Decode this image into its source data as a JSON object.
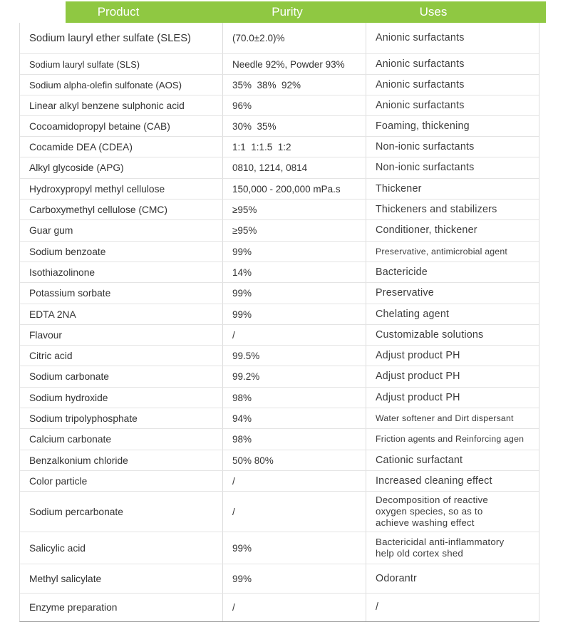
{
  "header": {
    "product_label": "Product",
    "purity_label": "Purity",
    "uses_label": "Uses",
    "bg_color": "#8fc842",
    "text_color": "#ffffff"
  },
  "table": {
    "rows": [
      {
        "product": "Sodium lauryl ether sulfate (SLES)",
        "purity": "(70.0±2.0)%",
        "uses": "Anionic surfactants"
      },
      {
        "product": "Sodium lauryl sulfate (SLS)",
        "purity": "Needle 92%, Powder 93%",
        "uses": "Anionic surfactants"
      },
      {
        "product": "Sodium alpha-olefin sulfonate (AOS)",
        "purity": "35%  38%  92%",
        "uses": "Anionic surfactants"
      },
      {
        "product": "Linear alkyl benzene sulphonic acid",
        "purity": "96%",
        "uses": "Anionic surfactants"
      },
      {
        "product": "Cocoamidopropyl betaine (CAB)",
        "purity": "30%  35%",
        "uses": "Foaming, thickening"
      },
      {
        "product": "Cocamide DEA (CDEA)",
        "purity": "1:1  1:1.5  1:2",
        "uses": "Non-ionic surfactants"
      },
      {
        "product": "Alkyl glycoside (APG)",
        "purity": "0810, 1214, 0814",
        "uses": "Non-ionic surfactants"
      },
      {
        "product": "Hydroxypropyl methyl cellulose",
        "purity": "150,000 - 200,000 mPa.s",
        "uses": "Thickener"
      },
      {
        "product": "Carboxymethyl cellulose (CMC)",
        "purity": "≥95%",
        "uses": "Thickeners and stabilizers"
      },
      {
        "product": "Guar gum",
        "purity": "≥95%",
        "uses": "Conditioner, thickener"
      },
      {
        "product": "Sodium benzoate",
        "purity": "99%",
        "uses": "Preservative, antimicrobial agent"
      },
      {
        "product": "Isothiazolinone",
        "purity": "14%",
        "uses": "Bactericide"
      },
      {
        "product": "Potassium sorbate",
        "purity": "99%",
        "uses": "Preservative"
      },
      {
        "product": "EDTA 2NA",
        "purity": "99%",
        "uses": "Chelating agent"
      },
      {
        "product": "Flavour",
        "purity": "/",
        "uses": "Customizable solutions"
      },
      {
        "product": "Citric acid",
        "purity": "99.5%",
        "uses": "Adjust product PH"
      },
      {
        "product": "Sodium carbonate",
        "purity": "99.2%",
        "uses": "Adjust product PH"
      },
      {
        "product": "Sodium hydroxide",
        "purity": "98%",
        "uses": "Adjust product PH"
      },
      {
        "product": "Sodium tripolyphosphate",
        "purity": "94%",
        "uses": "Water softener and Dirt dispersant"
      },
      {
        "product": "Calcium carbonate",
        "purity": "98%",
        "uses": "Friction agents and Reinforcing agen"
      },
      {
        "product": "Benzalkonium chloride",
        "purity": "50% 80%",
        "uses": "Cationic surfactant"
      },
      {
        "product": "Color particle",
        "purity": "/",
        "uses": "Increased cleaning effect"
      },
      {
        "product": "Sodium percarbonate",
        "purity": "/",
        "uses": "Decomposition of reactive\noxygen species, so as to\nachieve washing effect"
      },
      {
        "product": "Salicylic acid",
        "purity": "99%",
        "uses": "Bactericidal anti-inflammatory\nhelp old cortex shed"
      },
      {
        "product": "Methyl salicylate",
        "purity": "99%",
        "uses": "Odorantr"
      },
      {
        "product": "Enzyme preparation",
        "purity": "/",
        "uses": "/"
      }
    ]
  }
}
